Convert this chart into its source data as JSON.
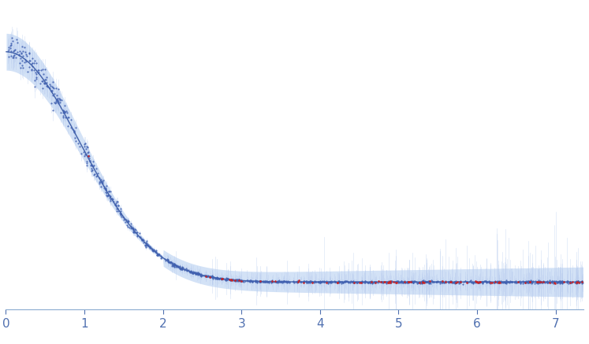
{
  "x_min": 0,
  "x_max": 7.35,
  "background_color": "#ffffff",
  "curve_color": "#4060a8",
  "blue_dot_color": "#4060b0",
  "red_dot_color": "#cc2020",
  "error_bar_color": "#b8ccee",
  "envelope_color": "#ccddf5",
  "dot_size": 2.5,
  "red_dot_size": 3.5,
  "tick_color": "#5070b0",
  "tick_label_color": "#5070b0",
  "spine_color": "#8aaad0",
  "x_ticks": [
    0,
    1,
    2,
    3,
    4,
    5,
    6,
    7
  ],
  "seed": 42,
  "n_points": 1300,
  "I0": 1.0,
  "Rg": 1.3
}
